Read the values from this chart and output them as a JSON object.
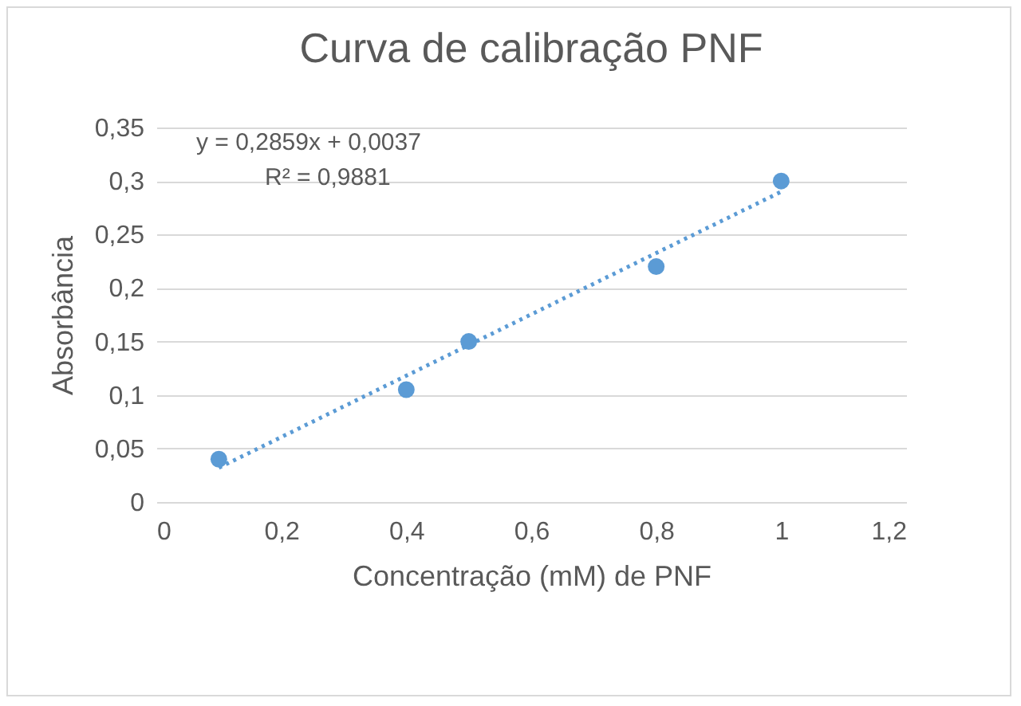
{
  "chart_data": {
    "type": "scatter",
    "title": "Curva de calibração PNF",
    "xlabel": "Concentração (mM) de PNF",
    "ylabel": "Absorbância",
    "annotations": [
      "y = 0,2859x + 0,0037",
      "R² = 0,9881"
    ],
    "series": [
      {
        "marker": "circle",
        "color": "#5b9bd5",
        "x": [
          0.1,
          0.4,
          0.5,
          0.8,
          1
        ],
        "values": [
          0.04,
          0.105,
          0.15,
          0.22,
          0.3
        ]
      },
      {
        "type": "line",
        "color": "#5b9bd5",
        "line_style": "dotted",
        "x": [
          0.1,
          1
        ],
        "values": [
          0.032,
          0.29
        ]
      }
    ],
    "xlim": [
      0,
      1.2
    ],
    "ylim": [
      0,
      0.35
    ],
    "xticks": [
      0,
      {
        "value": 0.2,
        "label": "0,2"
      },
      {
        "value": 0.4,
        "label": "0,4"
      },
      {
        "value": 0.6,
        "label": "0,6"
      },
      {
        "value": 0.8,
        "label": "0,8"
      },
      1,
      {
        "value": 1.2,
        "label": "1,2"
      }
    ],
    "yticks": [
      0,
      {
        "value": 0.05,
        "label": "0,05"
      },
      {
        "value": 0.1,
        "label": "0,1"
      },
      {
        "value": 0.15,
        "label": "0,15"
      },
      {
        "value": 0.2,
        "label": "0,2"
      },
      {
        "value": 0.25,
        "label": "0,25"
      },
      {
        "value": 0.3,
        "label": "0,3"
      },
      {
        "value": 0.35,
        "label": "0,35"
      }
    ],
    "grid": "y"
  }
}
